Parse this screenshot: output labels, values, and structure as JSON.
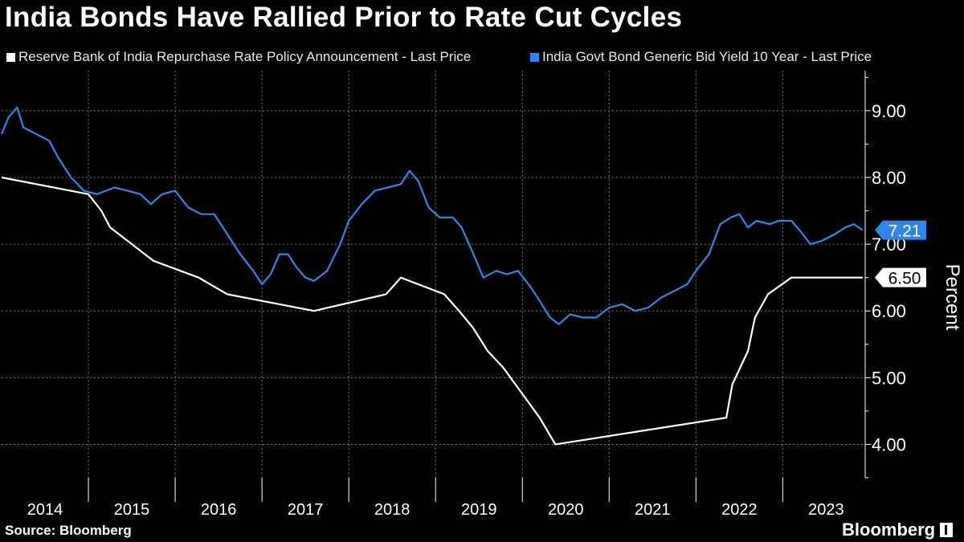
{
  "title": "India Bonds Have Rallied Prior to Rate Cut Cycles",
  "source": "Source: Bloomberg",
  "brand": "Bloomberg",
  "colors": {
    "background": "#000000",
    "policy_rate": "#ffffff",
    "bond_yield": "#2f86e8",
    "grid": "#777777"
  },
  "legend": [
    {
      "label": "Reserve Bank of India Repurchase Rate Policy Announcement - Last Price",
      "color": "#ffffff"
    },
    {
      "label": "India Govt Bond Generic Bid Yield 10 Year - Last Price",
      "color": "#2f86e8"
    }
  ],
  "chart_data": {
    "type": "line",
    "title": "India Bonds Have Rallied Prior to Rate Cut Cycles",
    "ylabel": "Percent",
    "ylim": [
      3.5,
      9.6
    ],
    "xlim": [
      2014.0,
      2023.95
    ],
    "yticks": [
      4.0,
      5.0,
      6.0,
      7.0,
      8.0,
      9.0
    ],
    "ytick_labels": [
      "4.00",
      "5.00",
      "6.00",
      "7.00",
      "8.00",
      "9.00"
    ],
    "xtick_labels": [
      "2014",
      "2015",
      "2016",
      "2017",
      "2018",
      "2019",
      "2020",
      "2021",
      "2022",
      "2023"
    ],
    "series": [
      {
        "name": "Reserve Bank of India Repurchase Rate Policy Announcement - Last Price",
        "step": true,
        "last_value_label": "6.50",
        "points": [
          [
            2014.0,
            8.0
          ],
          [
            2015.0,
            7.75
          ],
          [
            2015.15,
            7.5
          ],
          [
            2015.25,
            7.25
          ],
          [
            2015.75,
            6.75
          ],
          [
            2016.27,
            6.5
          ],
          [
            2016.6,
            6.25
          ],
          [
            2017.6,
            6.0
          ],
          [
            2018.43,
            6.25
          ],
          [
            2018.6,
            6.5
          ],
          [
            2019.1,
            6.25
          ],
          [
            2019.27,
            6.0
          ],
          [
            2019.43,
            5.75
          ],
          [
            2019.6,
            5.4
          ],
          [
            2019.78,
            5.15
          ],
          [
            2020.2,
            4.4
          ],
          [
            2020.38,
            4.0
          ],
          [
            2022.35,
            4.4
          ],
          [
            2022.42,
            4.9
          ],
          [
            2022.6,
            5.4
          ],
          [
            2022.68,
            5.9
          ],
          [
            2022.83,
            6.25
          ],
          [
            2023.1,
            6.5
          ],
          [
            2023.92,
            6.5
          ]
        ]
      },
      {
        "name": "India Govt Bond Generic Bid Yield 10 Year - Last Price",
        "step": false,
        "last_value_label": "7.21",
        "points": [
          [
            2014.0,
            8.65
          ],
          [
            2014.08,
            8.9
          ],
          [
            2014.18,
            9.05
          ],
          [
            2014.25,
            8.75
          ],
          [
            2014.4,
            8.65
          ],
          [
            2014.55,
            8.55
          ],
          [
            2014.65,
            8.3
          ],
          [
            2014.8,
            8.0
          ],
          [
            2014.95,
            7.8
          ],
          [
            2015.1,
            7.75
          ],
          [
            2015.3,
            7.85
          ],
          [
            2015.45,
            7.8
          ],
          [
            2015.6,
            7.75
          ],
          [
            2015.72,
            7.6
          ],
          [
            2015.85,
            7.75
          ],
          [
            2016.0,
            7.8
          ],
          [
            2016.15,
            7.55
          ],
          [
            2016.3,
            7.45
          ],
          [
            2016.45,
            7.45
          ],
          [
            2016.6,
            7.15
          ],
          [
            2016.75,
            6.85
          ],
          [
            2016.9,
            6.6
          ],
          [
            2017.0,
            6.4
          ],
          [
            2017.1,
            6.55
          ],
          [
            2017.2,
            6.85
          ],
          [
            2017.3,
            6.85
          ],
          [
            2017.4,
            6.65
          ],
          [
            2017.5,
            6.5
          ],
          [
            2017.6,
            6.45
          ],
          [
            2017.75,
            6.6
          ],
          [
            2017.9,
            7.0
          ],
          [
            2018.0,
            7.35
          ],
          [
            2018.15,
            7.6
          ],
          [
            2018.3,
            7.8
          ],
          [
            2018.45,
            7.85
          ],
          [
            2018.6,
            7.9
          ],
          [
            2018.7,
            8.1
          ],
          [
            2018.8,
            7.95
          ],
          [
            2018.92,
            7.55
          ],
          [
            2019.05,
            7.4
          ],
          [
            2019.2,
            7.4
          ],
          [
            2019.3,
            7.25
          ],
          [
            2019.42,
            6.9
          ],
          [
            2019.55,
            6.5
          ],
          [
            2019.7,
            6.6
          ],
          [
            2019.82,
            6.55
          ],
          [
            2019.95,
            6.6
          ],
          [
            2020.1,
            6.35
          ],
          [
            2020.2,
            6.15
          ],
          [
            2020.32,
            5.9
          ],
          [
            2020.42,
            5.8
          ],
          [
            2020.55,
            5.95
          ],
          [
            2020.7,
            5.9
          ],
          [
            2020.85,
            5.9
          ],
          [
            2021.0,
            6.05
          ],
          [
            2021.15,
            6.1
          ],
          [
            2021.3,
            6.0
          ],
          [
            2021.45,
            6.05
          ],
          [
            2021.6,
            6.2
          ],
          [
            2021.75,
            6.3
          ],
          [
            2021.9,
            6.4
          ],
          [
            2022.0,
            6.6
          ],
          [
            2022.15,
            6.85
          ],
          [
            2022.28,
            7.3
          ],
          [
            2022.4,
            7.4
          ],
          [
            2022.5,
            7.45
          ],
          [
            2022.6,
            7.25
          ],
          [
            2022.7,
            7.35
          ],
          [
            2022.85,
            7.3
          ],
          [
            2022.95,
            7.35
          ],
          [
            2023.1,
            7.35
          ],
          [
            2023.2,
            7.2
          ],
          [
            2023.32,
            7.0
          ],
          [
            2023.45,
            7.05
          ],
          [
            2023.6,
            7.15
          ],
          [
            2023.72,
            7.25
          ],
          [
            2023.82,
            7.3
          ],
          [
            2023.92,
            7.21
          ]
        ]
      }
    ]
  }
}
